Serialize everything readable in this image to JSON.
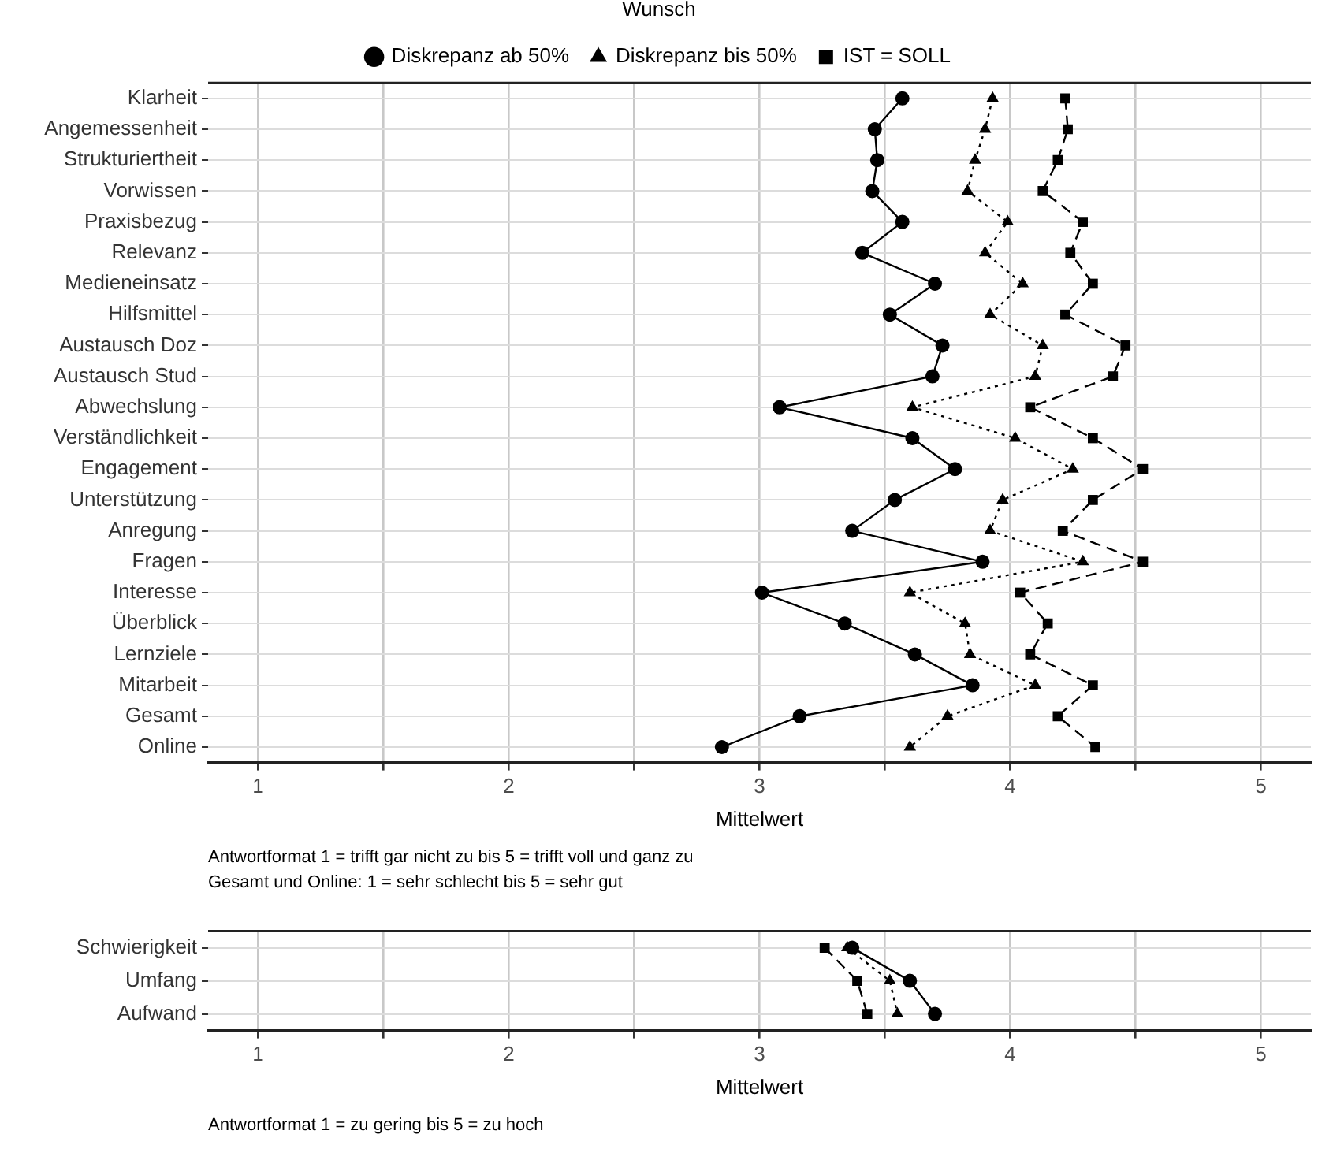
{
  "chart_data": [
    {
      "type": "line",
      "orientation": "horizontal",
      "xlabel": "Mittelwert",
      "legend_title": "Wunsch",
      "legend": "top",
      "grid": true,
      "categories": [
        "Klarheit",
        "Angemessenheit",
        "Strukturiertheit",
        "Vorwissen",
        "Praxisbezug",
        "Relevanz",
        "Medieneinsatz",
        "Hilfsmittel",
        "Austausch Doz",
        "Austausch Stud",
        "Abwechslung",
        "Verständlichkeit",
        "Engagement",
        "Unterstützung",
        "Anregung",
        "Fragen",
        "Interesse",
        "Überblick",
        "Lernziele",
        "Mitarbeit",
        "Gesamt",
        "Online"
      ],
      "xlim": [
        0.8,
        5.2
      ],
      "xticks": [
        1,
        {
          "value": 1.5,
          "label": null
        },
        2,
        {
          "value": 2.5,
          "label": null
        },
        3,
        {
          "value": 3.5,
          "label": null
        },
        4,
        {
          "value": 4.5,
          "label": null
        },
        5
      ],
      "series": [
        {
          "name": "Diskrepanz ab 50%",
          "color": "#000000",
          "marker": "circle",
          "line_style": "solid",
          "values": [
            3.57,
            3.46,
            3.47,
            3.45,
            3.57,
            3.41,
            3.7,
            3.52,
            3.73,
            3.69,
            3.08,
            3.61,
            3.78,
            3.54,
            3.37,
            3.89,
            3.01,
            3.34,
            3.62,
            3.85,
            3.16,
            2.85
          ]
        },
        {
          "name": "Diskrepanz bis 50%",
          "color": "#000000",
          "marker": "triangle",
          "line_style": "dotted",
          "values": [
            3.93,
            3.9,
            3.86,
            3.83,
            3.99,
            3.9,
            4.05,
            3.92,
            4.13,
            4.1,
            3.61,
            4.02,
            4.25,
            3.97,
            3.92,
            4.29,
            3.6,
            3.82,
            3.84,
            4.1,
            3.75,
            3.6
          ]
        },
        {
          "name": "IST = SOLL",
          "color": "#000000",
          "marker": "square",
          "line_style": "dashed",
          "values": [
            4.22,
            4.23,
            4.19,
            4.13,
            4.29,
            4.24,
            4.33,
            4.22,
            4.46,
            4.41,
            4.08,
            4.33,
            4.53,
            4.33,
            4.21,
            4.53,
            4.04,
            4.15,
            4.08,
            4.33,
            4.19,
            4.34
          ]
        }
      ],
      "annotations": [
        "Antwortformat 1 = trifft gar nicht zu bis 5 = trifft voll und ganz zu",
        "Gesamt und Online: 1 = sehr schlecht bis 5 = sehr gut"
      ]
    },
    {
      "type": "line",
      "orientation": "horizontal",
      "xlabel": "Mittelwert",
      "grid": true,
      "categories": [
        "Schwierigkeit",
        "Umfang",
        "Aufwand"
      ],
      "xlim": [
        0.8,
        5.2
      ],
      "xticks": [
        1,
        {
          "value": 1.5,
          "label": null
        },
        2,
        {
          "value": 2.5,
          "label": null
        },
        3,
        {
          "value": 3.5,
          "label": null
        },
        4,
        {
          "value": 4.5,
          "label": null
        },
        5
      ],
      "series": [
        {
          "color": "#000000",
          "marker": "circle",
          "line_style": "solid",
          "values": [
            3.37,
            3.6,
            3.7
          ]
        },
        {
          "color": "#000000",
          "marker": "triangle",
          "line_style": "dotted",
          "values": [
            3.35,
            3.52,
            3.55
          ]
        },
        {
          "color": "#000000",
          "marker": "square",
          "line_style": "dashed",
          "values": [
            3.26,
            3.39,
            3.43
          ]
        }
      ],
      "annotations": [
        "Antwortformat 1 = zu gering bis 5 = zu hoch"
      ]
    }
  ]
}
